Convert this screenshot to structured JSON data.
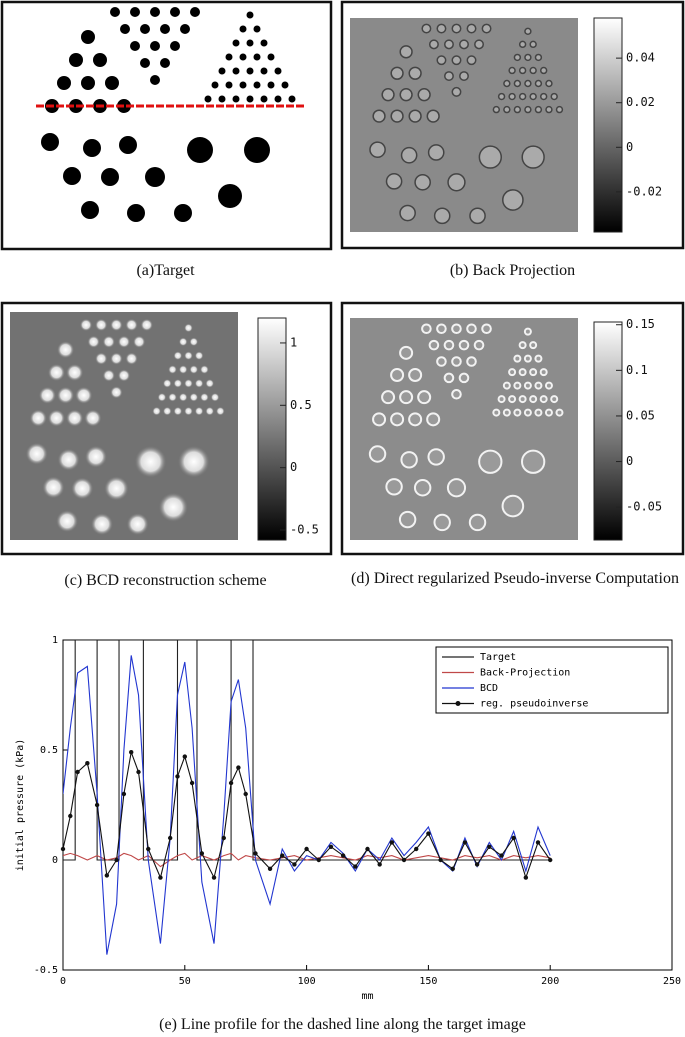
{
  "panels": [
    {
      "caption": "(a)Target"
    },
    {
      "caption": "(b) Back Projection",
      "colorbar": {
        "lim": [
          -0.038,
          0.058
        ],
        "ticks": [
          0.04,
          0.02,
          0,
          -0.02
        ]
      }
    },
    {
      "caption": "(c) BCD reconstruction scheme",
      "colorbar": {
        "lim": [
          -0.58,
          1.2
        ],
        "ticks": [
          1,
          0.5,
          0,
          -0.5
        ]
      }
    },
    {
      "caption": "(d) Direct regularized Pseudo-inverse Computation",
      "colorbar": {
        "lim": [
          -0.086,
          0.153
        ],
        "ticks": [
          0.15,
          0.1,
          0.05,
          0,
          -0.05
        ]
      }
    }
  ],
  "chart_data": {
    "type": "line",
    "caption": "(e) Line profile for the dashed line along the target image",
    "xlabel": "mm",
    "ylabel": "initial pressure (kPa)",
    "xlim": [
      0,
      250
    ],
    "ylim": [
      -0.5,
      1
    ],
    "xticks": [
      0,
      50,
      100,
      150,
      200,
      250
    ],
    "yticks": [
      -0.5,
      0,
      0.5,
      1
    ],
    "legend": "upper right",
    "x": [
      0,
      3,
      6,
      10,
      14,
      18,
      22,
      25,
      28,
      31,
      35,
      40,
      44,
      47,
      50,
      53,
      57,
      62,
      66,
      69,
      72,
      75,
      79,
      85,
      90,
      95,
      100,
      105,
      110,
      115,
      120,
      125,
      130,
      135,
      140,
      145,
      150,
      155,
      160,
      165,
      170,
      175,
      180,
      185,
      190,
      195,
      200
    ],
    "series": [
      {
        "name": "Target",
        "color": "#222222",
        "x": [
          0,
          5,
          5,
          14,
          14,
          23,
          23,
          33,
          33,
          47,
          47,
          55,
          55,
          69,
          69,
          78,
          78,
          200
        ],
        "values": [
          0,
          0,
          1,
          1,
          0,
          0,
          1,
          1,
          0,
          0,
          1,
          1,
          0,
          0,
          1,
          1,
          0,
          0
        ]
      },
      {
        "name": "Back-Projection",
        "color": "#c04848",
        "values": [
          0.02,
          0.03,
          0.02,
          0,
          0.02,
          0,
          0.01,
          0.03,
          0.02,
          0,
          0.02,
          -0.03,
          0,
          0.02,
          0.03,
          0,
          0.02,
          0,
          0.02,
          0.03,
          0,
          0.02,
          0.01,
          0,
          0.01,
          0.02,
          0,
          0.01,
          0.02,
          0.01,
          0,
          0.02,
          0.01,
          0.02,
          0,
          0.01,
          0.02,
          0.01,
          0,
          0.02,
          0.01,
          0.02,
          0,
          0.02,
          0.01,
          0.02,
          0.01
        ]
      },
      {
        "name": "BCD",
        "color": "#2236d0",
        "values": [
          0.3,
          0.6,
          0.85,
          0.88,
          0.3,
          -0.43,
          -0.2,
          0.5,
          0.93,
          0.75,
          0,
          -0.38,
          0.1,
          0.75,
          0.9,
          0.6,
          -0.1,
          -0.38,
          0.2,
          0.72,
          0.82,
          0.6,
          0,
          -0.2,
          0.05,
          -0.05,
          0.02,
          0,
          0.08,
          0.03,
          -0.05,
          0.05,
          0,
          0.1,
          0.02,
          0.08,
          0.15,
          0,
          -0.05,
          0.1,
          -0.03,
          0.08,
          0,
          0.13,
          -0.05,
          0.15,
          0.02
        ]
      },
      {
        "name": "reg. pseudoinverse",
        "color": "#111111",
        "marker": "dot",
        "values": [
          0.05,
          0.2,
          0.4,
          0.44,
          0.25,
          -0.07,
          0,
          0.3,
          0.49,
          0.4,
          0.05,
          -0.08,
          0.1,
          0.38,
          0.47,
          0.35,
          0.03,
          -0.08,
          0.1,
          0.35,
          0.42,
          0.3,
          0.03,
          -0.04,
          0.02,
          -0.02,
          0.05,
          0,
          0.06,
          0.02,
          -0.03,
          0.05,
          -0.02,
          0.08,
          0,
          0.05,
          0.12,
          0,
          -0.04,
          0.08,
          -0.02,
          0.06,
          0.02,
          0.1,
          -0.08,
          0.08,
          0
        ]
      }
    ]
  }
}
